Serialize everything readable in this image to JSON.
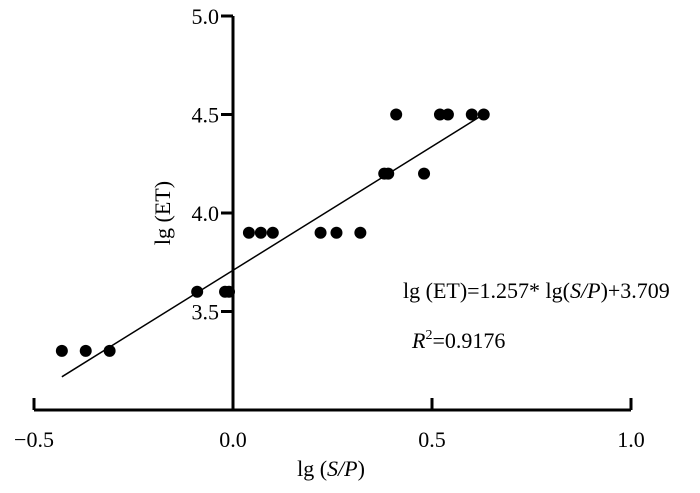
{
  "chart_data": {
    "type": "scatter",
    "title": "",
    "xlabel": {
      "prefix": "lg (",
      "var": "S/P",
      "suffix": ")"
    },
    "ylabel": "lg (ET)",
    "xlim": [
      -0.5,
      1.0
    ],
    "ylim": [
      3.0,
      5.0
    ],
    "x_ticks": [
      -0.5,
      0.0,
      0.5,
      1.0
    ],
    "x_tick_labels": [
      "−0.5",
      "0.0",
      "0.5",
      "1.0"
    ],
    "y_ticks": [
      3.5,
      4.0,
      4.5,
      5.0
    ],
    "y_tick_labels": [
      "3.5",
      "4.0",
      "4.5",
      "5.0"
    ],
    "grid": false,
    "legend": "none",
    "marker_color": "#000000",
    "points": [
      {
        "x": -0.43,
        "y": 3.3
      },
      {
        "x": -0.37,
        "y": 3.3
      },
      {
        "x": -0.31,
        "y": 3.3
      },
      {
        "x": -0.09,
        "y": 3.6
      },
      {
        "x": -0.02,
        "y": 3.6
      },
      {
        "x": -0.01,
        "y": 3.6
      },
      {
        "x": 0.04,
        "y": 3.9
      },
      {
        "x": 0.07,
        "y": 3.9
      },
      {
        "x": 0.1,
        "y": 3.9
      },
      {
        "x": 0.22,
        "y": 3.9
      },
      {
        "x": 0.26,
        "y": 3.9
      },
      {
        "x": 0.32,
        "y": 3.9
      },
      {
        "x": 0.38,
        "y": 4.2
      },
      {
        "x": 0.39,
        "y": 4.2
      },
      {
        "x": 0.41,
        "y": 4.5
      },
      {
        "x": 0.48,
        "y": 4.2
      },
      {
        "x": 0.52,
        "y": 4.5
      },
      {
        "x": 0.54,
        "y": 4.5
      },
      {
        "x": 0.6,
        "y": 4.5
      },
      {
        "x": 0.63,
        "y": 4.5
      }
    ],
    "fit_line": {
      "slope": 1.257,
      "intercept": 3.709,
      "x_range": [
        -0.43,
        0.62
      ]
    },
    "annotations": {
      "equation": {
        "lhs": "lg (ET)=1.257* lg",
        "var": "S/P",
        "rhs": ")+3.709",
        "open": "("
      },
      "r2": {
        "sym": "R",
        "sup": "2",
        "value": "=0.9176"
      }
    }
  }
}
